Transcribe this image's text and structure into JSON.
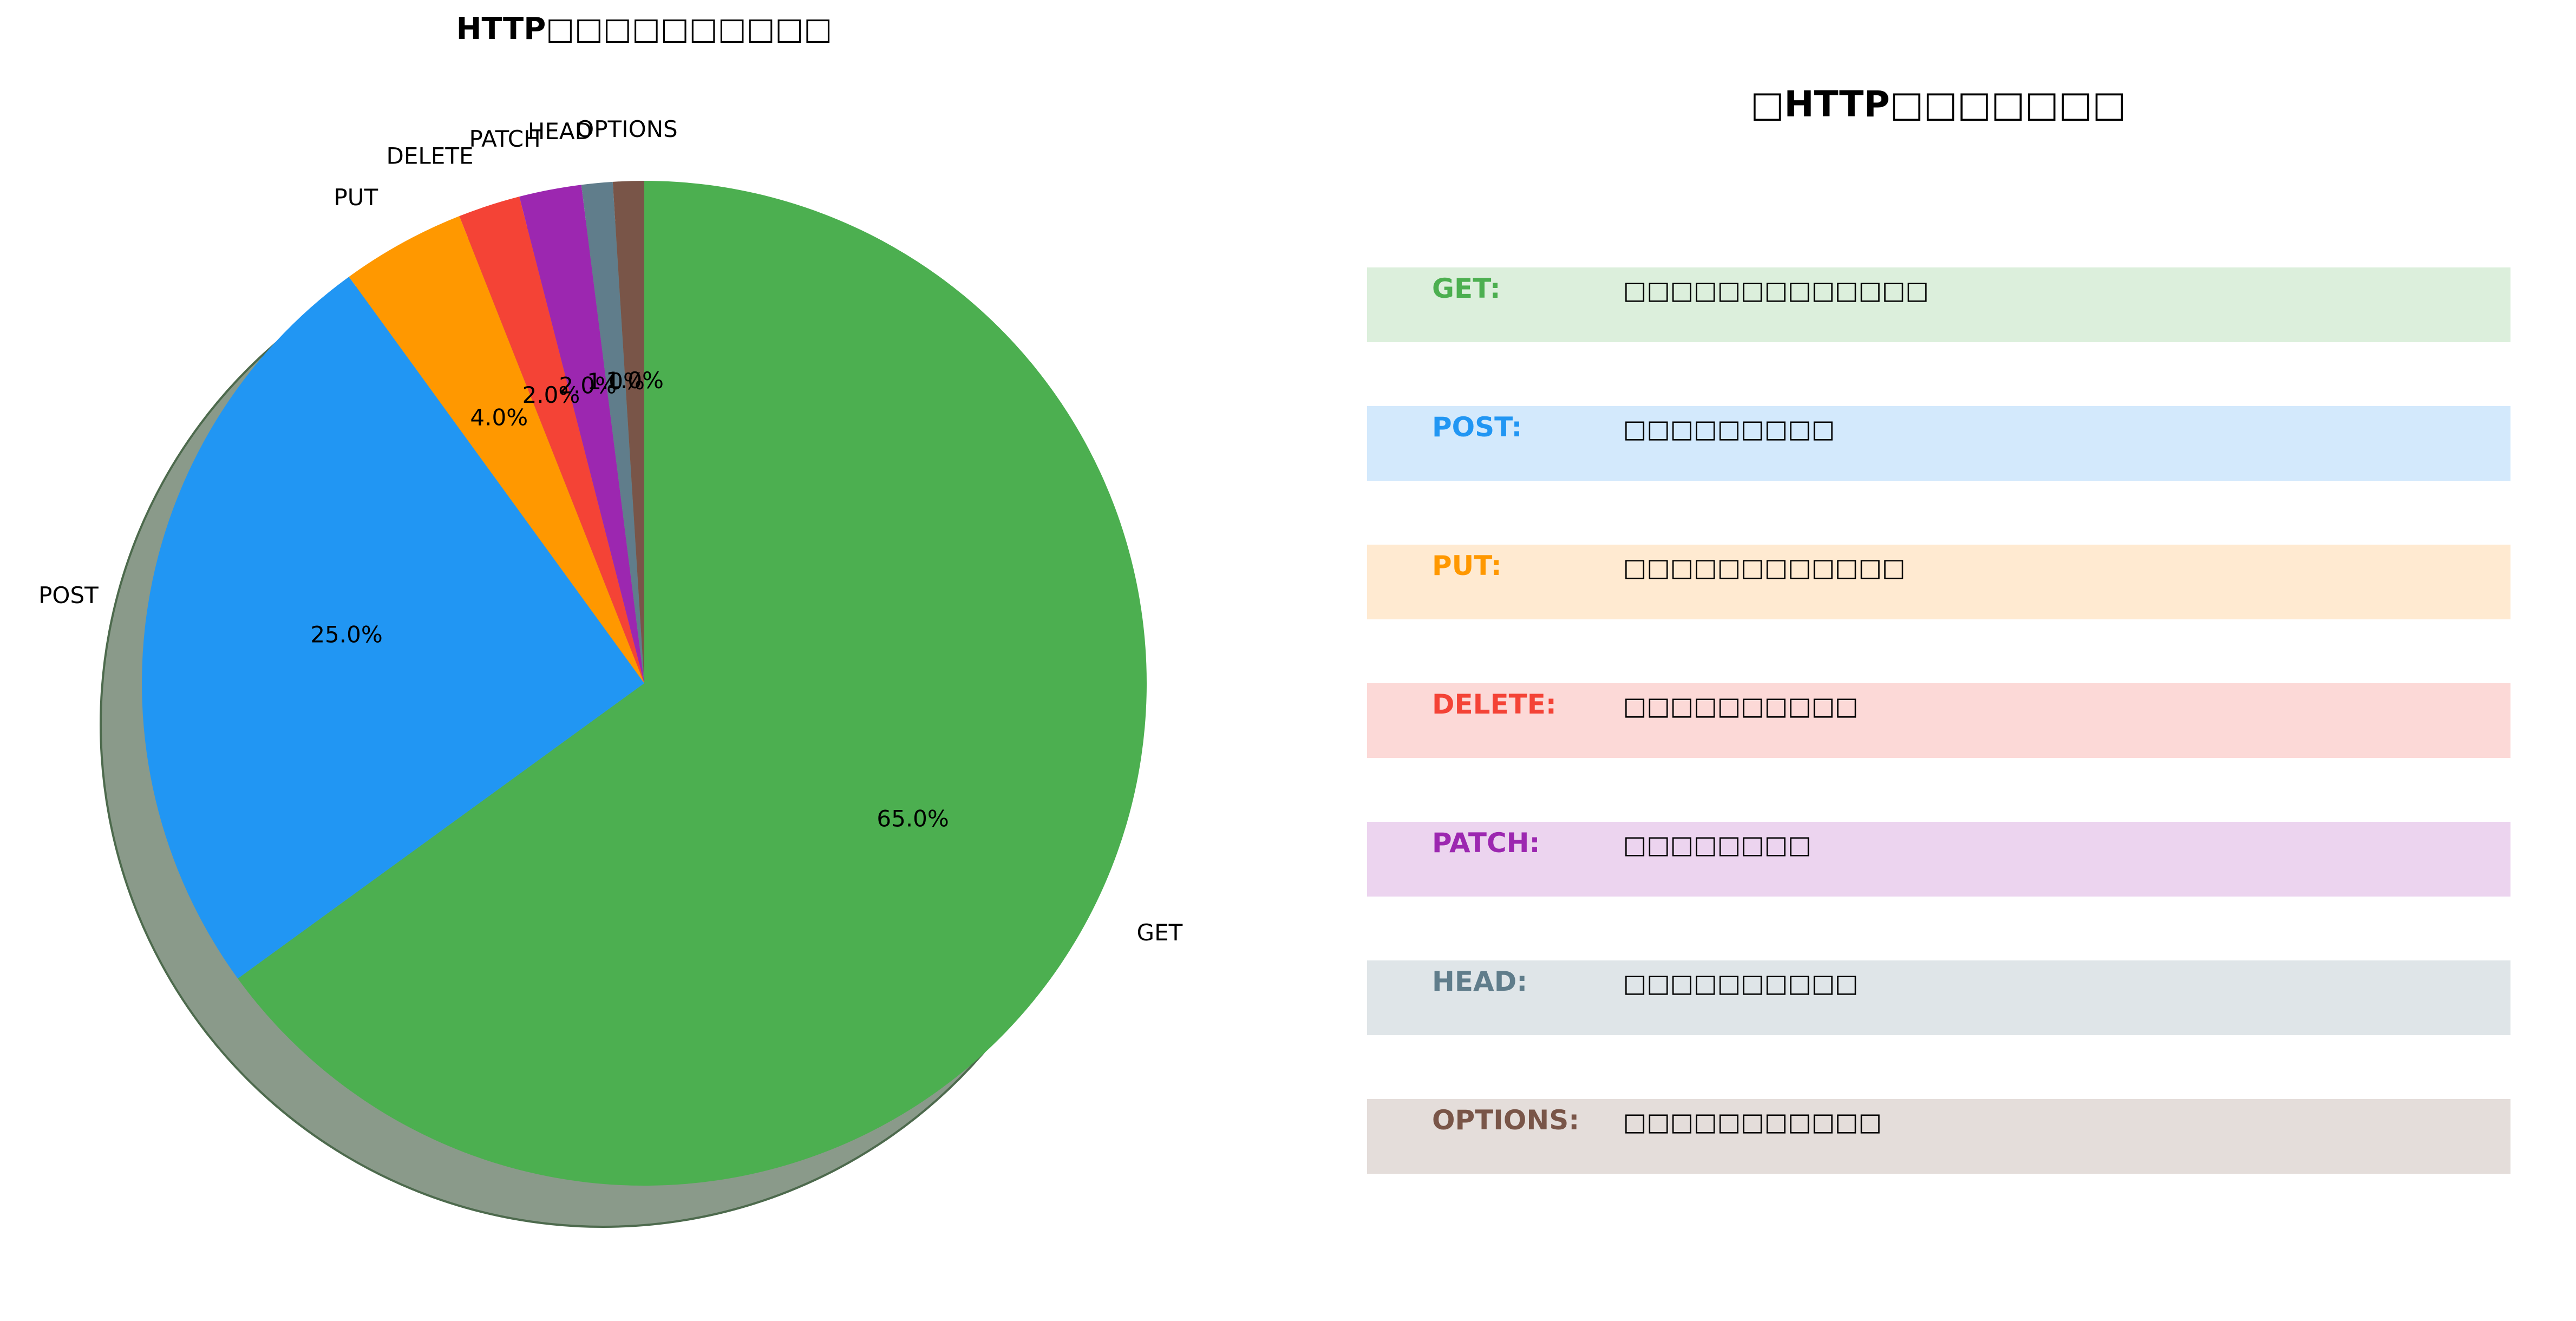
{
  "chart_data": [
    {
      "type": "pie",
      "title": "HTTP□□□□□□□□□□",
      "categories": [
        "GET",
        "POST",
        "PUT",
        "DELETE",
        "PATCH",
        "HEAD",
        "OPTIONS"
      ],
      "values": [
        65.0,
        25.0,
        4.0,
        2.0,
        2.0,
        1.0,
        1.0
      ],
      "value_labels": [
        "65.0%",
        "25.0%",
        "4.0%",
        "2.0%",
        "2.0%",
        "1.0%",
        "1.0%"
      ],
      "colors": [
        "#4caf50",
        "#2196f3",
        "#ff9800",
        "#f44336",
        "#9c27b0",
        "#607d8b",
        "#795548"
      ],
      "start_angle_deg": 90,
      "direction": "clockwise",
      "shadow": true,
      "legend": "none"
    }
  ],
  "info_panel": {
    "title": "□HTTP□□□□□□□",
    "methods": [
      {
        "name": "GET:",
        "desc": "□□□□□□□□□□□□□",
        "color": "#4caf50",
        "bg": "#dcefdc"
      },
      {
        "name": "POST:",
        "desc": "□□□□□□□□□",
        "color": "#2196f3",
        "bg": "#d3e9fc"
      },
      {
        "name": "PUT:",
        "desc": "□□□□□□□□□□□□",
        "color": "#ff9800",
        "bg": "#ffead1"
      },
      {
        "name": "DELETE:",
        "desc": "□□□□□□□□□□",
        "color": "#f44336",
        "bg": "#fcd9d7"
      },
      {
        "name": "PATCH:",
        "desc": "□□□□□□□□",
        "color": "#9c27b0",
        "bg": "#ecd4ef"
      },
      {
        "name": "HEAD:",
        "desc": "□□□□□□□□□□",
        "color": "#607d8b",
        "bg": "#dfe5e8"
      },
      {
        "name": "OPTIONS:",
        "desc": "□□□□□□□□□□□",
        "color": "#795548",
        "bg": "#e4ddda"
      }
    ]
  }
}
